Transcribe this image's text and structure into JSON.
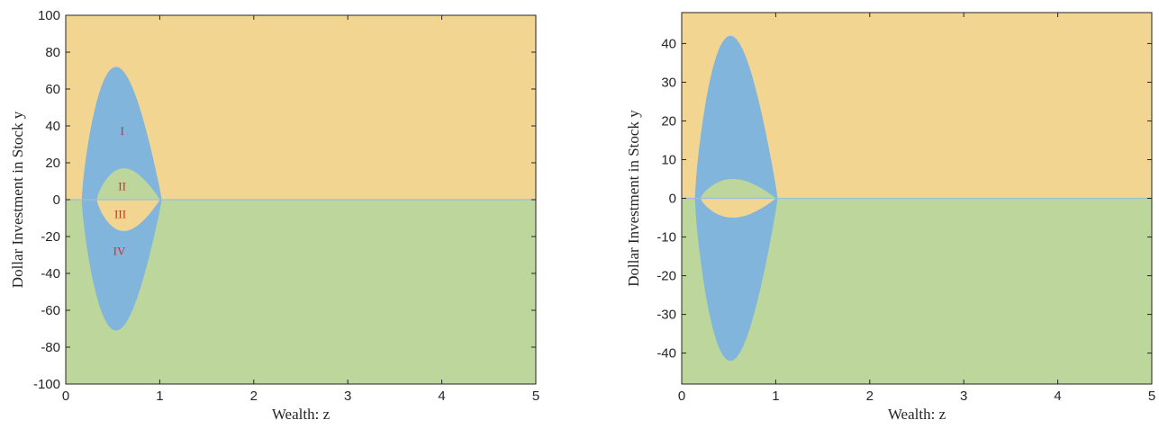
{
  "colors": {
    "upper_region": "#f3d592",
    "lower_region": "#bdd69b",
    "blue_region": "#82b5dc",
    "region_label": "#d62d20"
  },
  "chart_data": [
    {
      "type": "area",
      "xlabel": "Wealth: z",
      "ylabel": "Dollar Investment in Stock y",
      "xlim": [
        0,
        5
      ],
      "ylim": [
        -100,
        100
      ],
      "xticks": [
        0,
        1,
        2,
        3,
        4,
        5
      ],
      "yticks": [
        -100,
        -80,
        -60,
        -40,
        -20,
        0,
        20,
        40,
        60,
        80,
        100
      ],
      "grid": false,
      "legend": "none",
      "regions": {
        "upper": "y > 0 outside blue region",
        "lower": "y < 0 outside blue region"
      },
      "blue_lens": {
        "x_left": 0.17,
        "x_right": 1.02,
        "x_peak": 0.58,
        "y_max": 72,
        "y_min": -71
      },
      "inner_lens": {
        "x_left": 0.33,
        "x_right": 1.0,
        "x_peak": 0.58,
        "y_max": 17,
        "y_min": -17
      },
      "region_labels": [
        {
          "text": "I",
          "x": 0.6,
          "y": 37
        },
        {
          "text": "II",
          "x": 0.6,
          "y": 7
        },
        {
          "text": "III",
          "x": 0.58,
          "y": -8
        },
        {
          "text": "IV",
          "x": 0.57,
          "y": -28
        }
      ]
    },
    {
      "type": "area",
      "xlabel": "Wealth: z",
      "ylabel": "Dollar Investment in Stock y",
      "xlim": [
        0,
        5
      ],
      "ylim": [
        -48,
        48
      ],
      "xticks": [
        0,
        1,
        2,
        3,
        4,
        5
      ],
      "yticks": [
        -40,
        -30,
        -20,
        -10,
        0,
        10,
        20,
        30,
        40
      ],
      "grid": false,
      "legend": "none",
      "blue_lens": {
        "x_left": 0.14,
        "x_right": 1.02,
        "x_peak": 0.57,
        "y_max": 42,
        "y_min": -42
      },
      "inner_lens": {
        "x_left": 0.2,
        "x_right": 1.0,
        "x_peak": 0.57,
        "y_max": 5,
        "y_min": -5
      },
      "region_labels": []
    }
  ]
}
